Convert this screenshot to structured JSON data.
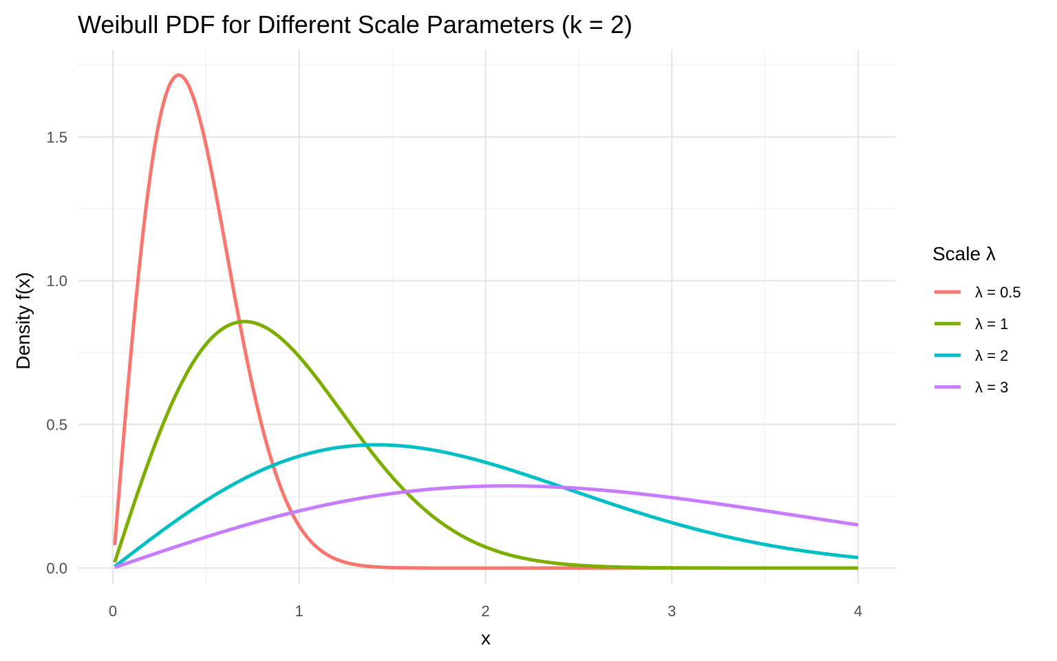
{
  "chart_data": {
    "type": "line",
    "title": "Weibull PDF for Different Scale Parameters (k = 2)",
    "xlabel": "x",
    "ylabel": "Density f(x)",
    "xlim": [
      0,
      4
    ],
    "ylim": [
      0,
      1.75
    ],
    "x_ticks": [
      0,
      1,
      2,
      3,
      4
    ],
    "x_tick_labels": [
      "0",
      "1",
      "2",
      "3",
      "4"
    ],
    "y_ticks": [
      0,
      0.5,
      1,
      1.5
    ],
    "y_tick_labels": [
      "0.0",
      "0.5",
      "1.0",
      "1.5"
    ],
    "grid": true,
    "legend": {
      "title": "Scale λ",
      "position": "right"
    },
    "shape_k": 2,
    "x_start": 0.01,
    "x_end": 4,
    "series": [
      {
        "name": "λ = 0.5",
        "scale": 0.5,
        "color": "#F8766D"
      },
      {
        "name": "λ = 1",
        "scale": 1,
        "color": "#7CAE00"
      },
      {
        "name": "λ = 2",
        "scale": 2,
        "color": "#00BFC4"
      },
      {
        "name": "λ = 3",
        "scale": 3,
        "color": "#C77CFF"
      }
    ]
  }
}
